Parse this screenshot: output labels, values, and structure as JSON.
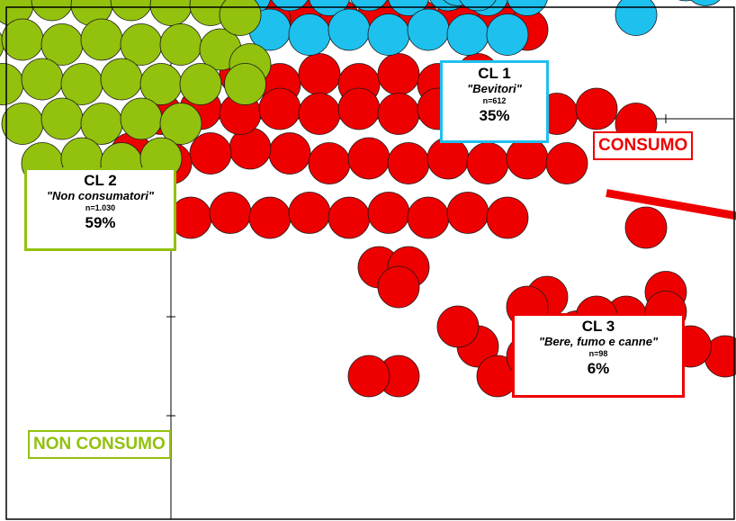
{
  "colors": {
    "cl1": "#1ec0ee",
    "cl2": "#92c10e",
    "cl3": "#ee0000",
    "axis": "#000000"
  },
  "labels": {
    "consumo": "CONSUMO",
    "non_consumo": "NON CONSUMO"
  },
  "chart_data": {
    "type": "scatter",
    "grid": false,
    "axis_ticks": "unlabeled",
    "clusters": [
      {
        "id": "CL 1",
        "name": "\"Bevitori\"",
        "n": "n=612",
        "pct": "35%",
        "color": "#1ec0ee"
      },
      {
        "id": "CL 2",
        "name": "\"Non consumatori\"",
        "n": "n=1.030",
        "pct": "59%",
        "color": "#92c10e"
      },
      {
        "id": "CL 3",
        "name": "\"Bere, fumo e canne\"",
        "n": "n=98",
        "pct": "6%",
        "color": "#ee0000"
      }
    ],
    "series": [
      {
        "cluster": "CL 3",
        "color": "#ee0000",
        "points": [
          [
            0.7,
            0.45
          ],
          [
            1.1,
            0.35
          ],
          [
            1.5,
            0.45
          ],
          [
            1.9,
            0.35
          ],
          [
            2.3,
            0.45
          ],
          [
            2.7,
            0.35
          ],
          [
            3.1,
            0.45
          ],
          [
            3.5,
            0.35
          ],
          [
            3.3,
            1.0
          ],
          [
            2.9,
            1.05
          ],
          [
            2.5,
            1.0
          ],
          [
            2.1,
            1.05
          ],
          [
            1.7,
            1.0
          ],
          [
            1.3,
            1.05
          ],
          [
            3.6,
            0.9
          ],
          [
            1.0,
            1.0
          ],
          [
            1.2,
            -0.35
          ],
          [
            1.6,
            -0.45
          ],
          [
            2.0,
            -0.4
          ],
          [
            2.4,
            -0.45
          ],
          [
            2.8,
            -0.4
          ],
          [
            3.2,
            -0.45
          ],
          [
            3.6,
            -0.4
          ],
          [
            4.0,
            -0.45
          ],
          [
            0.8,
            -0.3
          ],
          [
            0.4,
            -0.35
          ],
          [
            0.0,
            -0.45
          ],
          [
            -0.4,
            -0.35
          ],
          [
            -0.25,
            -0.9
          ],
          [
            0.2,
            -1.0
          ],
          [
            0.6,
            -0.95
          ],
          [
            1.0,
            -1.0
          ],
          [
            1.4,
            -0.95
          ],
          [
            1.8,
            -1.0
          ],
          [
            2.2,
            -0.95
          ],
          [
            2.6,
            -1.0
          ],
          [
            3.0,
            -0.95
          ],
          [
            3.4,
            -1.0
          ],
          [
            -0.1,
            0.05
          ],
          [
            0.3,
            0.1
          ],
          [
            0.7,
            0.05
          ],
          [
            1.1,
            0.1
          ],
          [
            1.5,
            0.05
          ],
          [
            1.9,
            0.1
          ],
          [
            2.3,
            0.05
          ],
          [
            2.7,
            0.1
          ],
          [
            3.1,
            0.05
          ],
          [
            3.5,
            0.1
          ],
          [
            3.9,
            0.05
          ],
          [
            4.3,
            0.1
          ],
          [
            2.1,
            -1.5
          ],
          [
            2.4,
            -1.5
          ],
          [
            4.7,
            -0.05
          ],
          [
            4.8,
            -1.1
          ],
          [
            5.0,
            -1.75
          ],
          [
            4.6,
            -2.0
          ],
          [
            4.3,
            -2.45
          ],
          [
            4.1,
            -2.15
          ],
          [
            3.8,
            -1.8
          ],
          [
            3.6,
            -1.9
          ],
          [
            3.1,
            -2.3
          ],
          [
            2.9,
            -2.1
          ],
          [
            3.3,
            -2.6
          ],
          [
            3.6,
            -2.4
          ],
          [
            4.3,
            -2.0
          ],
          [
            2.3,
            -2.6
          ],
          [
            2.0,
            -2.6
          ],
          [
            2.3,
            -1.7
          ],
          [
            6.1,
            -2.5
          ],
          [
            5.6,
            -2.4
          ],
          [
            5.25,
            -2.3
          ],
          [
            5.0,
            -1.95
          ]
        ]
      },
      {
        "cluster": "CL 1",
        "color": "#1ec0ee",
        "points": [
          [
            0.5,
            2.4
          ],
          [
            0.9,
            2.5
          ],
          [
            1.3,
            2.45
          ],
          [
            1.7,
            2.5
          ],
          [
            2.1,
            2.45
          ],
          [
            2.5,
            2.5
          ],
          [
            2.9,
            2.45
          ],
          [
            3.3,
            2.35
          ],
          [
            0.7,
            2.05
          ],
          [
            1.1,
            2.1
          ],
          [
            1.5,
            2.05
          ],
          [
            1.9,
            2.1
          ],
          [
            2.3,
            2.05
          ],
          [
            2.7,
            2.1
          ],
          [
            3.1,
            2.05
          ],
          [
            3.5,
            2.0
          ],
          [
            0.6,
            1.65
          ],
          [
            1.0,
            1.7
          ],
          [
            1.4,
            1.65
          ],
          [
            1.8,
            1.7
          ],
          [
            2.2,
            1.65
          ],
          [
            2.6,
            1.7
          ],
          [
            3.0,
            1.65
          ],
          [
            3.4,
            1.6
          ],
          [
            3.8,
            1.6
          ],
          [
            0.8,
            1.25
          ],
          [
            1.2,
            1.3
          ],
          [
            1.6,
            1.25
          ],
          [
            2.0,
            1.3
          ],
          [
            2.4,
            1.25
          ],
          [
            2.8,
            1.3
          ],
          [
            3.2,
            1.25
          ],
          [
            3.6,
            1.25
          ],
          [
            1.0,
            0.9
          ],
          [
            1.4,
            0.85
          ],
          [
            1.8,
            0.9
          ],
          [
            2.2,
            0.85
          ],
          [
            2.6,
            0.9
          ],
          [
            3.0,
            0.85
          ],
          [
            3.4,
            0.85
          ],
          [
            0.4,
            2.85
          ],
          [
            0.8,
            2.95
          ],
          [
            1.2,
            2.9
          ],
          [
            1.6,
            2.95
          ],
          [
            2.0,
            2.9
          ],
          [
            2.4,
            2.95
          ],
          [
            2.8,
            2.9
          ],
          [
            2.9,
            1.35
          ],
          [
            3.2,
            1.55
          ],
          [
            4.2,
            1.45
          ],
          [
            4.65,
            1.45
          ],
          [
            5.2,
            1.4
          ],
          [
            6.0,
            1.4
          ],
          [
            4.7,
            1.05
          ],
          [
            5.4,
            1.35
          ],
          [
            3.1,
            1.3
          ]
        ]
      },
      {
        "cluster": "CL 2",
        "color": "#92c10e",
        "points": [
          [
            -1.8,
            1.55
          ],
          [
            -1.4,
            1.6
          ],
          [
            -1.0,
            1.55
          ],
          [
            -0.6,
            1.6
          ],
          [
            -0.2,
            1.55
          ],
          [
            0.2,
            1.55
          ],
          [
            -1.6,
            1.15
          ],
          [
            -1.2,
            1.2
          ],
          [
            -0.8,
            1.15
          ],
          [
            -0.4,
            1.2
          ],
          [
            0.0,
            1.15
          ],
          [
            0.4,
            1.15
          ],
          [
            -1.9,
            0.75
          ],
          [
            -1.5,
            0.8
          ],
          [
            -1.1,
            0.75
          ],
          [
            -0.7,
            0.8
          ],
          [
            -0.3,
            0.75
          ],
          [
            0.1,
            0.75
          ],
          [
            0.5,
            0.7
          ],
          [
            -1.7,
            0.35
          ],
          [
            -1.3,
            0.4
          ],
          [
            -0.9,
            0.35
          ],
          [
            -0.5,
            0.4
          ],
          [
            -0.1,
            0.35
          ],
          [
            0.3,
            0.35
          ],
          [
            -1.5,
            -0.05
          ],
          [
            -1.1,
            0.0
          ],
          [
            -0.7,
            -0.05
          ],
          [
            -0.3,
            0.0
          ],
          [
            0.1,
            -0.05
          ],
          [
            -1.3,
            -0.45
          ],
          [
            -0.9,
            -0.4
          ],
          [
            -0.5,
            -0.45
          ],
          [
            -0.1,
            -0.4
          ],
          [
            -1.1,
            -0.8
          ],
          [
            -0.7,
            -0.85
          ],
          [
            -0.3,
            -0.8
          ],
          [
            -2.4,
            1.2
          ],
          [
            -2.5,
            0.9
          ],
          [
            -2.2,
            0.55
          ],
          [
            -1.95,
            0.25
          ],
          [
            -2.35,
            1.2
          ],
          [
            -2.05,
            1.2
          ],
          [
            0.7,
            1.05
          ],
          [
            0.8,
            0.55
          ],
          [
            0.75,
            0.35
          ]
        ]
      }
    ]
  }
}
